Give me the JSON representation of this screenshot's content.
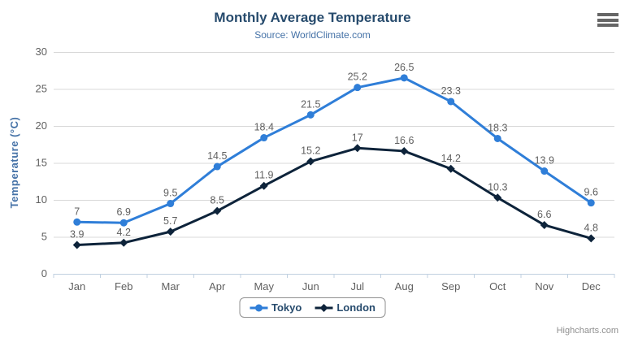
{
  "header": {
    "title": "Monthly Average Temperature",
    "subtitle": "Source: WorldClimate.com"
  },
  "chart_data": {
    "type": "line",
    "categories": [
      "Jan",
      "Feb",
      "Mar",
      "Apr",
      "May",
      "Jun",
      "Jul",
      "Aug",
      "Sep",
      "Oct",
      "Nov",
      "Dec"
    ],
    "series": [
      {
        "name": "Tokyo",
        "color": "#2f7ed8",
        "marker": "circle",
        "values": [
          7,
          6.9,
          9.5,
          14.5,
          18.4,
          21.5,
          25.2,
          26.5,
          23.3,
          18.3,
          13.9,
          9.6
        ]
      },
      {
        "name": "London",
        "color": "#0d233a",
        "marker": "diamond",
        "values": [
          3.9,
          4.2,
          5.7,
          8.5,
          11.9,
          15.2,
          17,
          16.6,
          14.2,
          10.3,
          6.6,
          4.8
        ]
      }
    ],
    "title": "Monthly Average Temperature",
    "subtitle": "Source: WorldClimate.com",
    "xlabel": "",
    "ylabel": "Temperature (°C)",
    "ylim": [
      0,
      30
    ],
    "yticks": [
      0,
      5,
      10,
      15,
      20,
      25,
      30
    ],
    "grid": true,
    "data_labels": true,
    "legend_position": "bottom"
  },
  "credits": {
    "label": "Highcharts.com"
  },
  "colors": {
    "title": "#274b6d",
    "subtitle": "#4572a7",
    "axis_title": "#4572a7",
    "axis_labels": "#606060",
    "data_labels": "#606060",
    "gridline": "#d8d8d8",
    "axis_line": "#c0d0e0",
    "legend_text": "#274b6d",
    "legend_border": "#909090",
    "credits": "#909090",
    "menu_icon": "#666666"
  }
}
